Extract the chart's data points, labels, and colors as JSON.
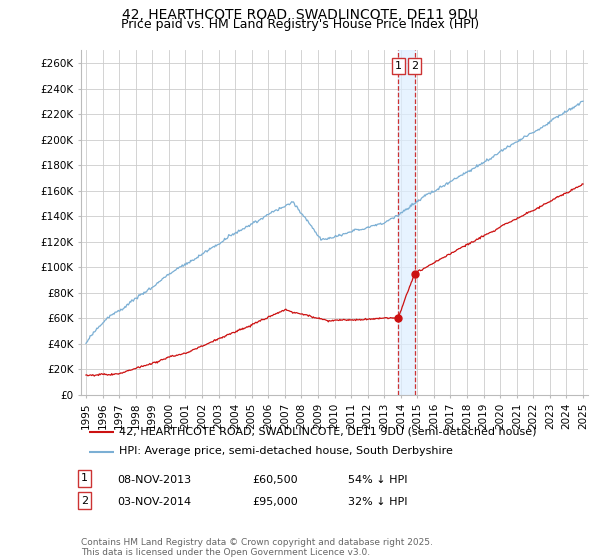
{
  "title": "42, HEARTHCOTE ROAD, SWADLINCOTE, DE11 9DU",
  "subtitle": "Price paid vs. HM Land Registry's House Price Index (HPI)",
  "ylabel_ticks": [
    "£0",
    "£20K",
    "£40K",
    "£60K",
    "£80K",
    "£100K",
    "£120K",
    "£140K",
    "£160K",
    "£180K",
    "£200K",
    "£220K",
    "£240K",
    "£260K"
  ],
  "ylim": [
    0,
    270000
  ],
  "xlim_year_start": 1995,
  "xlim_year_end": 2025,
  "hpi_color": "#7bafd4",
  "price_color": "#cc1111",
  "vline_color": "#cc3333",
  "shade_color": "#ddeeff",
  "background_color": "#ffffff",
  "grid_color": "#cccccc",
  "legend1_label": "42, HEARTHCOTE ROAD, SWADLINCOTE, DE11 9DU (semi-detached house)",
  "legend2_label": "HPI: Average price, semi-detached house, South Derbyshire",
  "annotation1_num": "1",
  "annotation1_date": "08-NOV-2013",
  "annotation1_price": "£60,500",
  "annotation1_hpi": "54% ↓ HPI",
  "annotation1_year": 2013.86,
  "annotation1_price_val": 60500,
  "annotation2_num": "2",
  "annotation2_date": "03-NOV-2014",
  "annotation2_price": "£95,000",
  "annotation2_hpi": "32% ↓ HPI",
  "annotation2_year": 2014.84,
  "annotation2_price_val": 95000,
  "footnote": "Contains HM Land Registry data © Crown copyright and database right 2025.\nThis data is licensed under the Open Government Licence v3.0.",
  "title_fontsize": 10,
  "subtitle_fontsize": 9,
  "tick_fontsize": 7.5,
  "legend_fontsize": 8,
  "annotation_fontsize": 8
}
